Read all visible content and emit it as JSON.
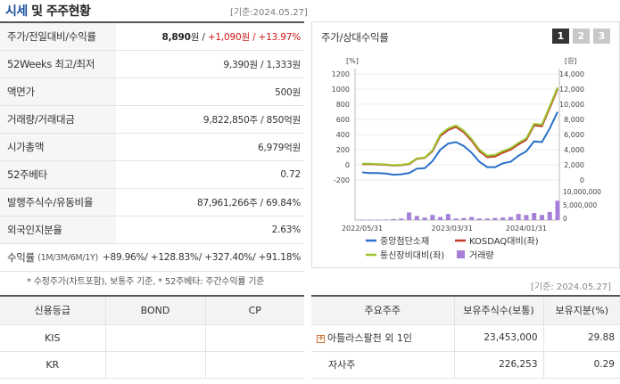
{
  "header": {
    "title_a": "시세",
    "title_b": " 및 주주현황",
    "date": "[기준:2024.05.27]"
  },
  "left_rows": [
    {
      "label": "주가/전일대비/수익률",
      "value_main": "8,890",
      "value_unit": "원",
      "value_sep": " / ",
      "value_red": "+1,090원 / +13.97%"
    },
    {
      "label": "52Weeks 최고/최저",
      "value": "9,390원 / 1,333원"
    },
    {
      "label": "액면가",
      "value": "500원"
    },
    {
      "label": "거래량/거래대금",
      "value": "9,822,850주 / 850억원"
    },
    {
      "label": "시가총액",
      "value": "6,979억원"
    },
    {
      "label": "52주베타",
      "value": "0.72"
    },
    {
      "label": "발행주식수/유동비율",
      "value": "87,961,266주 / 69.84%"
    },
    {
      "label": "외국인지분율",
      "value": "2.63%"
    }
  ],
  "returns": {
    "label": "수익률",
    "sub": "(1M/3M/6M/1Y)",
    "value": "+89.96%/ +128.83%/ +327.40%/ +91.18%"
  },
  "footnote": "* 수정주가(차트포함), 보통주 기준, * 52주베타: 주간수익률 기준",
  "chart_panel": {
    "title": "주가/상대수익률",
    "pages": [
      "1",
      "2",
      "3"
    ],
    "icon": "page-selector"
  },
  "chart_data": {
    "type": "line",
    "title": "주가/상대수익률",
    "left_unit": "[%]",
    "right_unit": "[원]",
    "left_ticks": [
      "1200",
      "1000",
      "800",
      "600",
      "400",
      "200",
      "0",
      "-200"
    ],
    "right_ticks": [
      "14,000",
      "12,000",
      "10,000",
      "8,000",
      "6,000",
      "4,000",
      "2,000",
      "0"
    ],
    "volume_ticks": [
      "10,000,000",
      "5,000,000",
      "0"
    ],
    "ylim_left": [
      -200,
      1200
    ],
    "x_labels": [
      "2022/05/31",
      "2023/03/31",
      "2024/01/31"
    ],
    "x_index": [
      0,
      1,
      2,
      3,
      4,
      5,
      6,
      7,
      8,
      9,
      10,
      11,
      12,
      13,
      14,
      15,
      16,
      17,
      18,
      19,
      20,
      21,
      22,
      23,
      24,
      25
    ],
    "series": [
      {
        "name": "중앙첨단소재",
        "color": "#2a6fc9",
        "values": [
          -100,
          -110,
          -110,
          -115,
          -130,
          -125,
          -110,
          -50,
          -45,
          50,
          200,
          280,
          300,
          250,
          160,
          40,
          -30,
          -30,
          20,
          40,
          120,
          180,
          310,
          300,
          480,
          700
        ]
      },
      {
        "name": "KOSDAQ대비(좌)",
        "color": "#c0392b",
        "values": [
          10,
          10,
          5,
          0,
          -10,
          -5,
          10,
          80,
          90,
          180,
          380,
          460,
          500,
          430,
          320,
          180,
          100,
          110,
          160,
          200,
          270,
          330,
          520,
          510,
          750,
          1000
        ]
      },
      {
        "name": "통신장비대비(좌)",
        "color": "#9bc32a",
        "values": [
          15,
          15,
          10,
          5,
          -5,
          0,
          15,
          85,
          95,
          190,
          400,
          480,
          520,
          450,
          340,
          200,
          120,
          130,
          180,
          220,
          290,
          350,
          540,
          530,
          770,
          1020
        ]
      }
    ],
    "volume": {
      "name": "거래량",
      "color": "#a57fd8",
      "values": [
        0.1,
        0.1,
        0.1,
        0.1,
        0.2,
        0.3,
        1.5,
        0.8,
        0.5,
        1.0,
        0.6,
        1.2,
        0.3,
        0.4,
        0.6,
        0.3,
        0.3,
        0.4,
        0.5,
        0.6,
        1.2,
        1.0,
        1.4,
        1.0,
        1.6,
        3.8
      ]
    }
  },
  "date2": "[기준: 2024.05.27]",
  "credit": {
    "headers": [
      "신용등급",
      "BOND",
      "CP"
    ],
    "rows": [
      [
        "KIS",
        "",
        ""
      ],
      [
        "KR",
        "",
        ""
      ]
    ]
  },
  "holders": {
    "headers": [
      "주요주주",
      "보유주식수(보통)",
      "보유지분(%)"
    ],
    "rows": [
      {
        "name": "아틀라스팔천 외 1인",
        "shares": "23,453,000",
        "pct": "29.88",
        "expandable": true
      },
      {
        "name": "자사주",
        "shares": "226,253",
        "pct": "0.29",
        "expandable": false
      }
    ]
  }
}
